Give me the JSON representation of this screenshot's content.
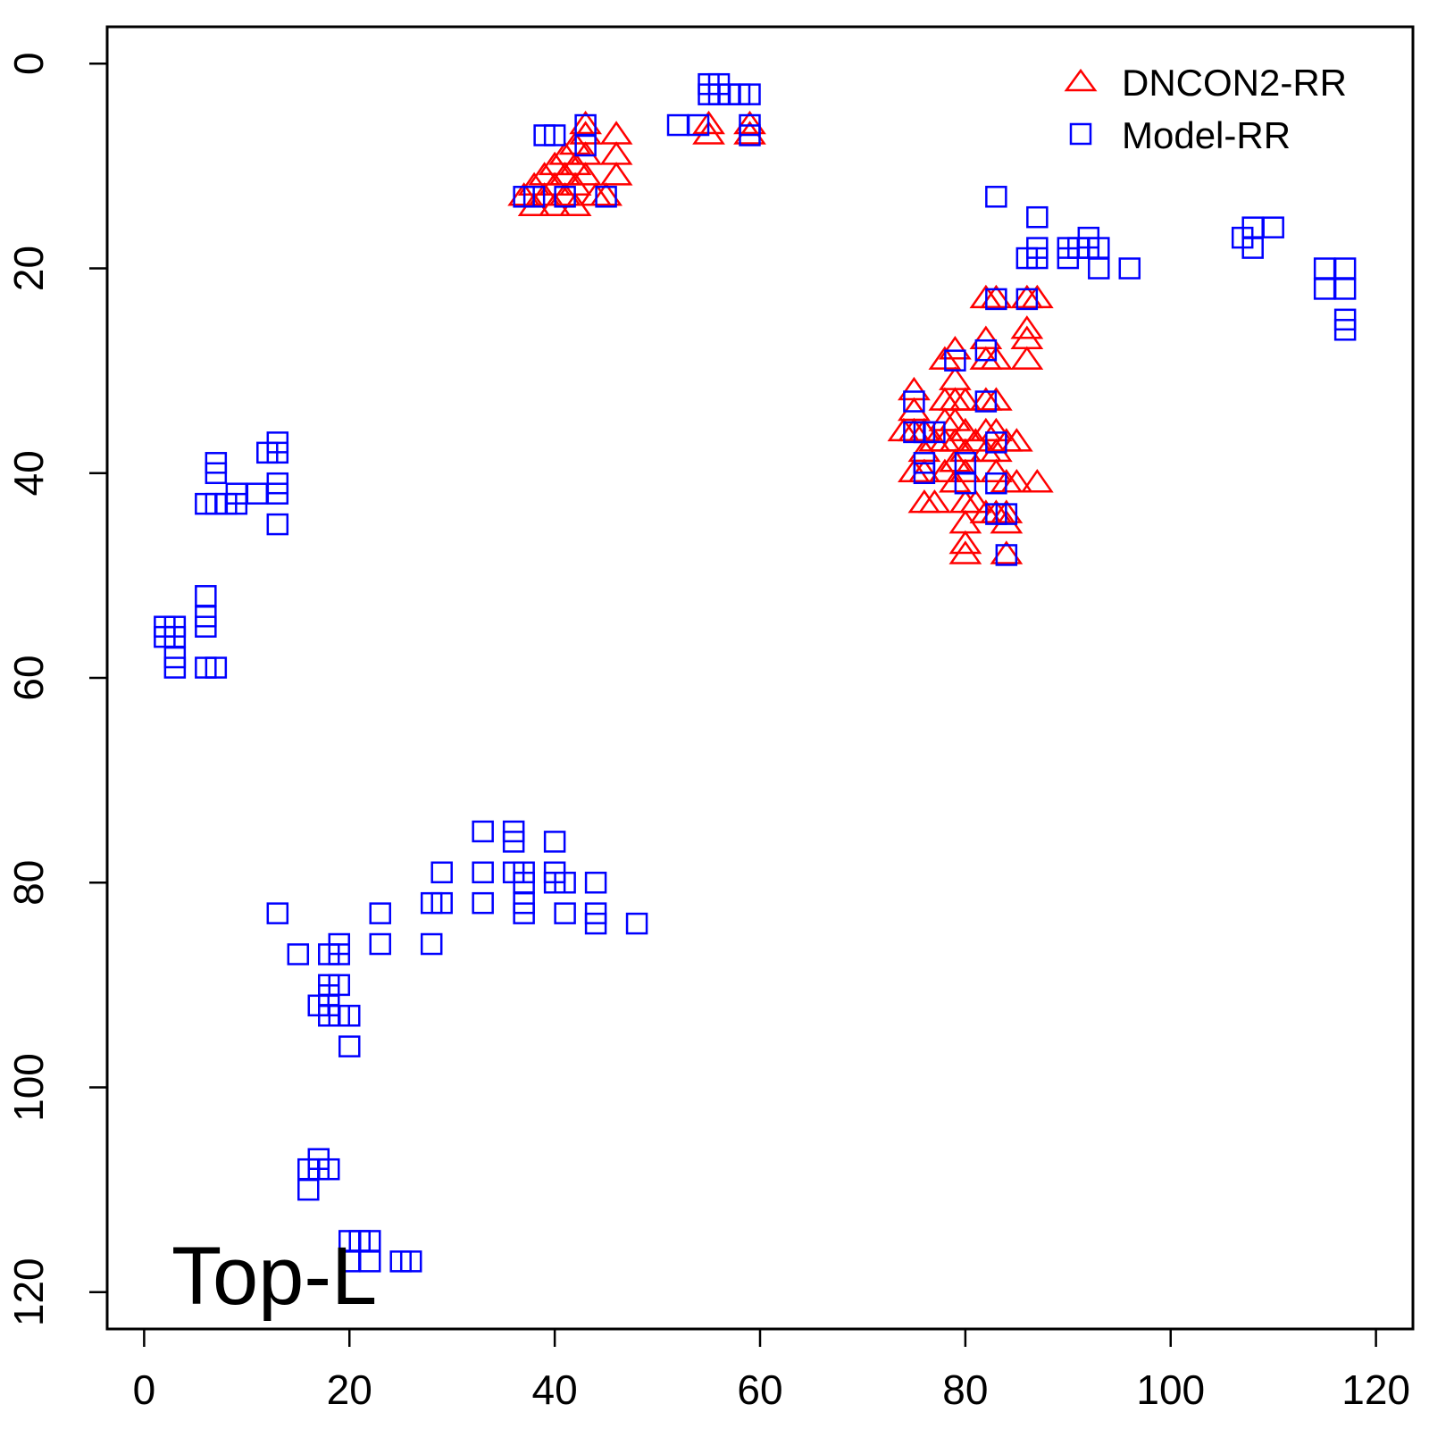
{
  "chart_data": {
    "type": "scatter",
    "xlim": [
      -3.6,
      123.6
    ],
    "ylim": [
      123.6,
      -3.6
    ],
    "x_ticks": [
      0,
      20,
      40,
      60,
      80,
      100,
      120
    ],
    "y_ticks": [
      0,
      20,
      40,
      60,
      80,
      100,
      120
    ],
    "x_tick_labels": [
      "0",
      "20",
      "40",
      "60",
      "80",
      "100",
      "120"
    ],
    "y_tick_labels": [
      "0",
      "20",
      "40",
      "60",
      "80",
      "100",
      "120"
    ],
    "legend_position": "top-right",
    "annotation": "Top-L",
    "grid": false,
    "series": [
      {
        "name": "DNCON2-RR",
        "marker": "triangle",
        "color": "#ff0000",
        "points": [
          [
            37,
            13
          ],
          [
            38,
            12
          ],
          [
            38,
            14
          ],
          [
            39,
            11
          ],
          [
            39,
            13
          ],
          [
            40,
            10
          ],
          [
            40,
            12
          ],
          [
            40,
            14
          ],
          [
            41,
            9
          ],
          [
            41,
            11
          ],
          [
            41,
            13
          ],
          [
            42,
            8
          ],
          [
            42,
            10
          ],
          [
            42,
            12
          ],
          [
            42,
            14
          ],
          [
            43,
            6
          ],
          [
            43,
            7
          ],
          [
            43,
            9
          ],
          [
            43,
            11
          ],
          [
            44,
            13
          ],
          [
            45,
            13
          ],
          [
            46,
            7
          ],
          [
            46,
            9
          ],
          [
            46,
            11
          ],
          [
            55,
            6
          ],
          [
            55,
            7
          ],
          [
            59,
            6
          ],
          [
            59,
            7
          ],
          [
            74,
            36
          ],
          [
            75,
            32
          ],
          [
            75,
            34
          ],
          [
            75,
            36
          ],
          [
            75,
            40
          ],
          [
            76,
            36
          ],
          [
            76,
            38
          ],
          [
            76,
            40
          ],
          [
            76,
            43
          ],
          [
            77,
            37
          ],
          [
            77,
            43
          ],
          [
            78,
            29
          ],
          [
            78,
            33
          ],
          [
            78,
            35
          ],
          [
            78,
            37
          ],
          [
            78,
            40
          ],
          [
            79,
            28
          ],
          [
            79,
            31
          ],
          [
            79,
            33
          ],
          [
            79,
            35
          ],
          [
            79,
            37
          ],
          [
            79,
            39
          ],
          [
            79,
            41
          ],
          [
            80,
            33
          ],
          [
            80,
            36
          ],
          [
            80,
            38
          ],
          [
            80,
            40
          ],
          [
            80,
            43
          ],
          [
            80,
            45
          ],
          [
            80,
            47
          ],
          [
            80,
            48
          ],
          [
            81,
            37
          ],
          [
            81,
            43
          ],
          [
            82,
            23
          ],
          [
            82,
            27
          ],
          [
            82,
            29
          ],
          [
            82,
            33
          ],
          [
            82,
            36
          ],
          [
            82,
            38
          ],
          [
            82,
            44
          ],
          [
            83,
            23
          ],
          [
            83,
            29
          ],
          [
            83,
            33
          ],
          [
            83,
            36
          ],
          [
            83,
            38
          ],
          [
            83,
            40
          ],
          [
            83,
            44
          ],
          [
            84,
            37
          ],
          [
            84,
            41
          ],
          [
            84,
            44
          ],
          [
            84,
            45
          ],
          [
            84,
            48
          ],
          [
            85,
            37
          ],
          [
            85,
            41
          ],
          [
            86,
            23
          ],
          [
            86,
            26
          ],
          [
            86,
            27
          ],
          [
            86,
            29
          ],
          [
            87,
            23
          ],
          [
            87,
            41
          ]
        ]
      },
      {
        "name": "Model-RR",
        "marker": "square",
        "color": "#0000ff",
        "points": [
          [
            37,
            13
          ],
          [
            38,
            13
          ],
          [
            39,
            7
          ],
          [
            40,
            7
          ],
          [
            41,
            13
          ],
          [
            43,
            6
          ],
          [
            43,
            8
          ],
          [
            45,
            13
          ],
          [
            52,
            6
          ],
          [
            54,
            6
          ],
          [
            55,
            2
          ],
          [
            55,
            3
          ],
          [
            56,
            2
          ],
          [
            56,
            3
          ],
          [
            57,
            3
          ],
          [
            58,
            3
          ],
          [
            59,
            3
          ],
          [
            59,
            6
          ],
          [
            59,
            7
          ],
          [
            75,
            33
          ],
          [
            75,
            36
          ],
          [
            76,
            36
          ],
          [
            76,
            39
          ],
          [
            76,
            40
          ],
          [
            77,
            36
          ],
          [
            79,
            29
          ],
          [
            80,
            39
          ],
          [
            80,
            41
          ],
          [
            82,
            28
          ],
          [
            82,
            33
          ],
          [
            83,
            13
          ],
          [
            83,
            23
          ],
          [
            83,
            37
          ],
          [
            83,
            41
          ],
          [
            83,
            44
          ],
          [
            84,
            44
          ],
          [
            84,
            48
          ],
          [
            86,
            23
          ],
          [
            87,
            15
          ],
          [
            87,
            18
          ],
          [
            87,
            19
          ],
          [
            86,
            19
          ],
          [
            90,
            18
          ],
          [
            90,
            19
          ],
          [
            91,
            18
          ],
          [
            92,
            17
          ],
          [
            92,
            18
          ],
          [
            93,
            18
          ],
          [
            93,
            20
          ],
          [
            96,
            20
          ],
          [
            107,
            17
          ],
          [
            108,
            16
          ],
          [
            108,
            18
          ],
          [
            110,
            16
          ],
          [
            115,
            20
          ],
          [
            115,
            22
          ],
          [
            117,
            20
          ],
          [
            117,
            22
          ],
          [
            117,
            25
          ],
          [
            117,
            26
          ],
          [
            13,
            37
          ],
          [
            13,
            38
          ],
          [
            12,
            38
          ],
          [
            13,
            41
          ],
          [
            13,
            42
          ],
          [
            13,
            45
          ],
          [
            11,
            42
          ],
          [
            9,
            42
          ],
          [
            9,
            43
          ],
          [
            8,
            43
          ],
          [
            7,
            43
          ],
          [
            6,
            43
          ],
          [
            7,
            39
          ],
          [
            7,
            40
          ],
          [
            2,
            55
          ],
          [
            2,
            56
          ],
          [
            3,
            55
          ],
          [
            3,
            56
          ],
          [
            3,
            58
          ],
          [
            3,
            59
          ],
          [
            6,
            52
          ],
          [
            6,
            54
          ],
          [
            6,
            55
          ],
          [
            6,
            59
          ],
          [
            7,
            59
          ],
          [
            33,
            75
          ],
          [
            33,
            79
          ],
          [
            33,
            82
          ],
          [
            36,
            75
          ],
          [
            36,
            76
          ],
          [
            36,
            79
          ],
          [
            37,
            79
          ],
          [
            37,
            80
          ],
          [
            37,
            82
          ],
          [
            37,
            83
          ],
          [
            40,
            76
          ],
          [
            40,
            79
          ],
          [
            40,
            80
          ],
          [
            41,
            80
          ],
          [
            41,
            83
          ],
          [
            44,
            80
          ],
          [
            44,
            83
          ],
          [
            44,
            84
          ],
          [
            48,
            84
          ],
          [
            28,
            82
          ],
          [
            28,
            86
          ],
          [
            29,
            79
          ],
          [
            29,
            82
          ],
          [
            23,
            83
          ],
          [
            23,
            86
          ],
          [
            13,
            83
          ],
          [
            15,
            87
          ],
          [
            18,
            87
          ],
          [
            19,
            86
          ],
          [
            19,
            87
          ],
          [
            18,
            90
          ],
          [
            19,
            90
          ],
          [
            18,
            91
          ],
          [
            17,
            92
          ],
          [
            18,
            92
          ],
          [
            18,
            93
          ],
          [
            19,
            93
          ],
          [
            20,
            93
          ],
          [
            20,
            96
          ],
          [
            16,
            108
          ],
          [
            16,
            110
          ],
          [
            17,
            107
          ],
          [
            17,
            108
          ],
          [
            18,
            108
          ],
          [
            20,
            115
          ],
          [
            20,
            117
          ],
          [
            21,
            115
          ],
          [
            22,
            115
          ],
          [
            22,
            117
          ],
          [
            25,
            117
          ],
          [
            26,
            117
          ]
        ]
      }
    ]
  }
}
